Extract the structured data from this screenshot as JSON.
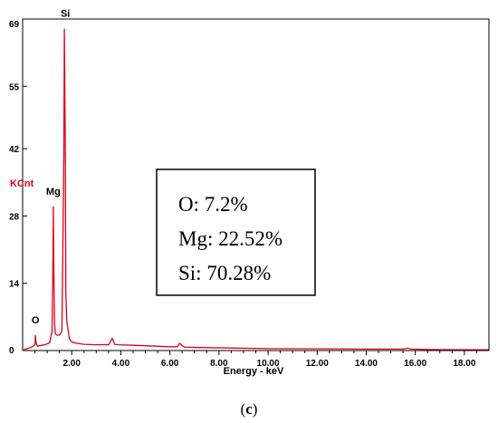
{
  "chart_data": {
    "type": "line",
    "title": "",
    "xlabel": "Energy - keV",
    "ylabel": "KCnt",
    "xlim": [
      0,
      19
    ],
    "ylim": [
      0,
      69
    ],
    "x_ticks": [
      "2.00",
      "4.00",
      "6.00",
      "8.00",
      "10.00",
      "12.00",
      "14.00",
      "16.00",
      "18.00"
    ],
    "y_ticks": [
      "0",
      "14",
      "28",
      "42",
      "55",
      "69"
    ],
    "series": [
      {
        "color": "#e0001a",
        "x": [
          0.05,
          0.2,
          0.4,
          0.5,
          0.52,
          0.55,
          0.6,
          0.7,
          0.9,
          1.1,
          1.2,
          1.23,
          1.25,
          1.27,
          1.3,
          1.33,
          1.4,
          1.5,
          1.6,
          1.68,
          1.7,
          1.72,
          1.74,
          1.76,
          1.8,
          1.85,
          1.9,
          2.0,
          2.2,
          2.5,
          3.0,
          3.5,
          3.65,
          3.7,
          3.75,
          3.9,
          4.5,
          5.0,
          6.0,
          6.3,
          6.4,
          6.5,
          6.6,
          7.5,
          8.7,
          10.0,
          12.0,
          14.0,
          15.5,
          15.7,
          15.8,
          16.5,
          18.0,
          19.0
        ],
        "y": [
          0.2,
          0.4,
          0.8,
          1.2,
          3.2,
          1.6,
          0.9,
          1.0,
          1.2,
          1.6,
          4.0,
          15.0,
          30.0,
          18.0,
          6.0,
          3.5,
          3.2,
          3.2,
          4.0,
          40.0,
          67.0,
          55.0,
          40.0,
          12.0,
          6.0,
          4.5,
          2.5,
          1.8,
          1.5,
          1.3,
          1.2,
          1.2,
          2.5,
          2.0,
          1.3,
          1.2,
          1.1,
          1.0,
          0.8,
          0.8,
          1.5,
          1.0,
          0.7,
          0.6,
          0.5,
          0.4,
          0.35,
          0.3,
          0.3,
          0.5,
          0.3,
          0.2,
          0.15,
          0.15
        ]
      }
    ],
    "peak_labels": [
      {
        "label": "O",
        "x": 0.52,
        "y": 3.2
      },
      {
        "label": "Mg",
        "x": 1.25,
        "y": 30.0
      },
      {
        "label": "Si",
        "x": 1.74,
        "y": 67.0
      }
    ],
    "composition": [
      "O: 7.2%",
      "Mg: 22.52%",
      "Si: 70.28%"
    ],
    "grid": false,
    "legend": "none"
  },
  "caption_left": "(",
  "caption_letter": "c",
  "caption_right": ")"
}
